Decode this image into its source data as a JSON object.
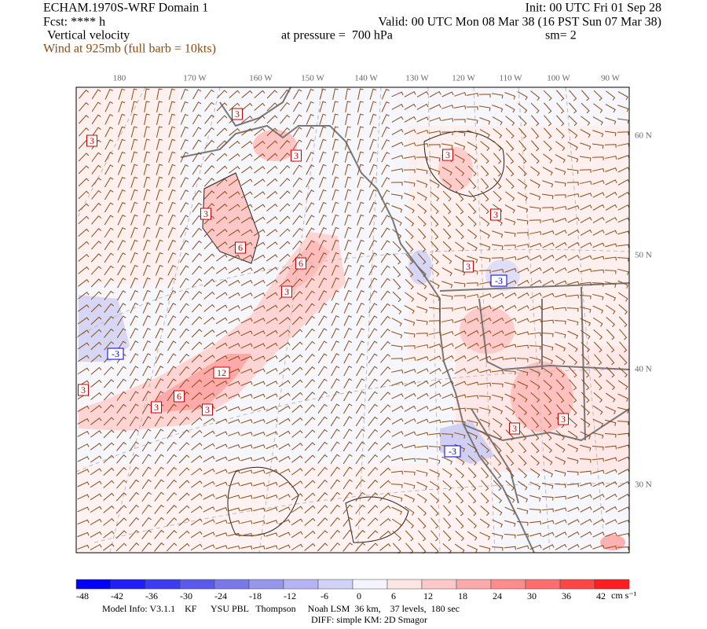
{
  "header": {
    "title": "ECHAM.1970S-WRF Domain 1",
    "init": "Init: 00 UTC Fri 01 Sep 28",
    "forecast": "Fcst: **** h",
    "valid": "Valid: 00 UTC Mon 08 Mar 38 (16 PST Sun 07 Mar 38)",
    "field": "Vertical velocity",
    "level": "at pressure =  700 hPa",
    "smoothing": "sm= 2",
    "wind": "Wind at 925mb (full barb = 10kts)"
  },
  "map": {
    "longitude_labels": [
      "180",
      "170 W",
      "160 W",
      "150 W",
      "140 W",
      "130 W",
      "120 W",
      "110 W",
      "100 W",
      "90 W"
    ],
    "latitude_labels": [
      "60 N",
      "50 N",
      "40 N",
      "30 N"
    ],
    "contour_labels": [
      "3",
      "3",
      "3",
      "3",
      "3",
      "3",
      "6",
      "6",
      "3",
      "-3",
      "3",
      "-3",
      "12",
      "3",
      "6",
      "3",
      "3",
      "-3",
      "3",
      "3"
    ]
  },
  "colorbar": {
    "labels": [
      -48,
      -42,
      -36,
      -30,
      -24,
      -18,
      -12,
      -6,
      0,
      6,
      12,
      18,
      24,
      30,
      36,
      42
    ],
    "colors": [
      "#0000ff",
      "#1e1ef5",
      "#3c3cf0",
      "#5a5aeb",
      "#7878eb",
      "#9696ef",
      "#b4b4f3",
      "#d2d2f8",
      "#f4f4ff",
      "#ffe4e4",
      "#ffc8c8",
      "#ffaaaa",
      "#ff8c8c",
      "#ff6e6e",
      "#ff4646",
      "#ff1e1e"
    ],
    "unit": "cm s⁻¹"
  },
  "footer": {
    "model_info": "Model Info: V3.1.1    KF      YSU PBL   Thompson     Noah LSM  36 km,    37 levels,  180 sec",
    "diff": "DIFF: simple KM: 2D Smagor"
  }
}
